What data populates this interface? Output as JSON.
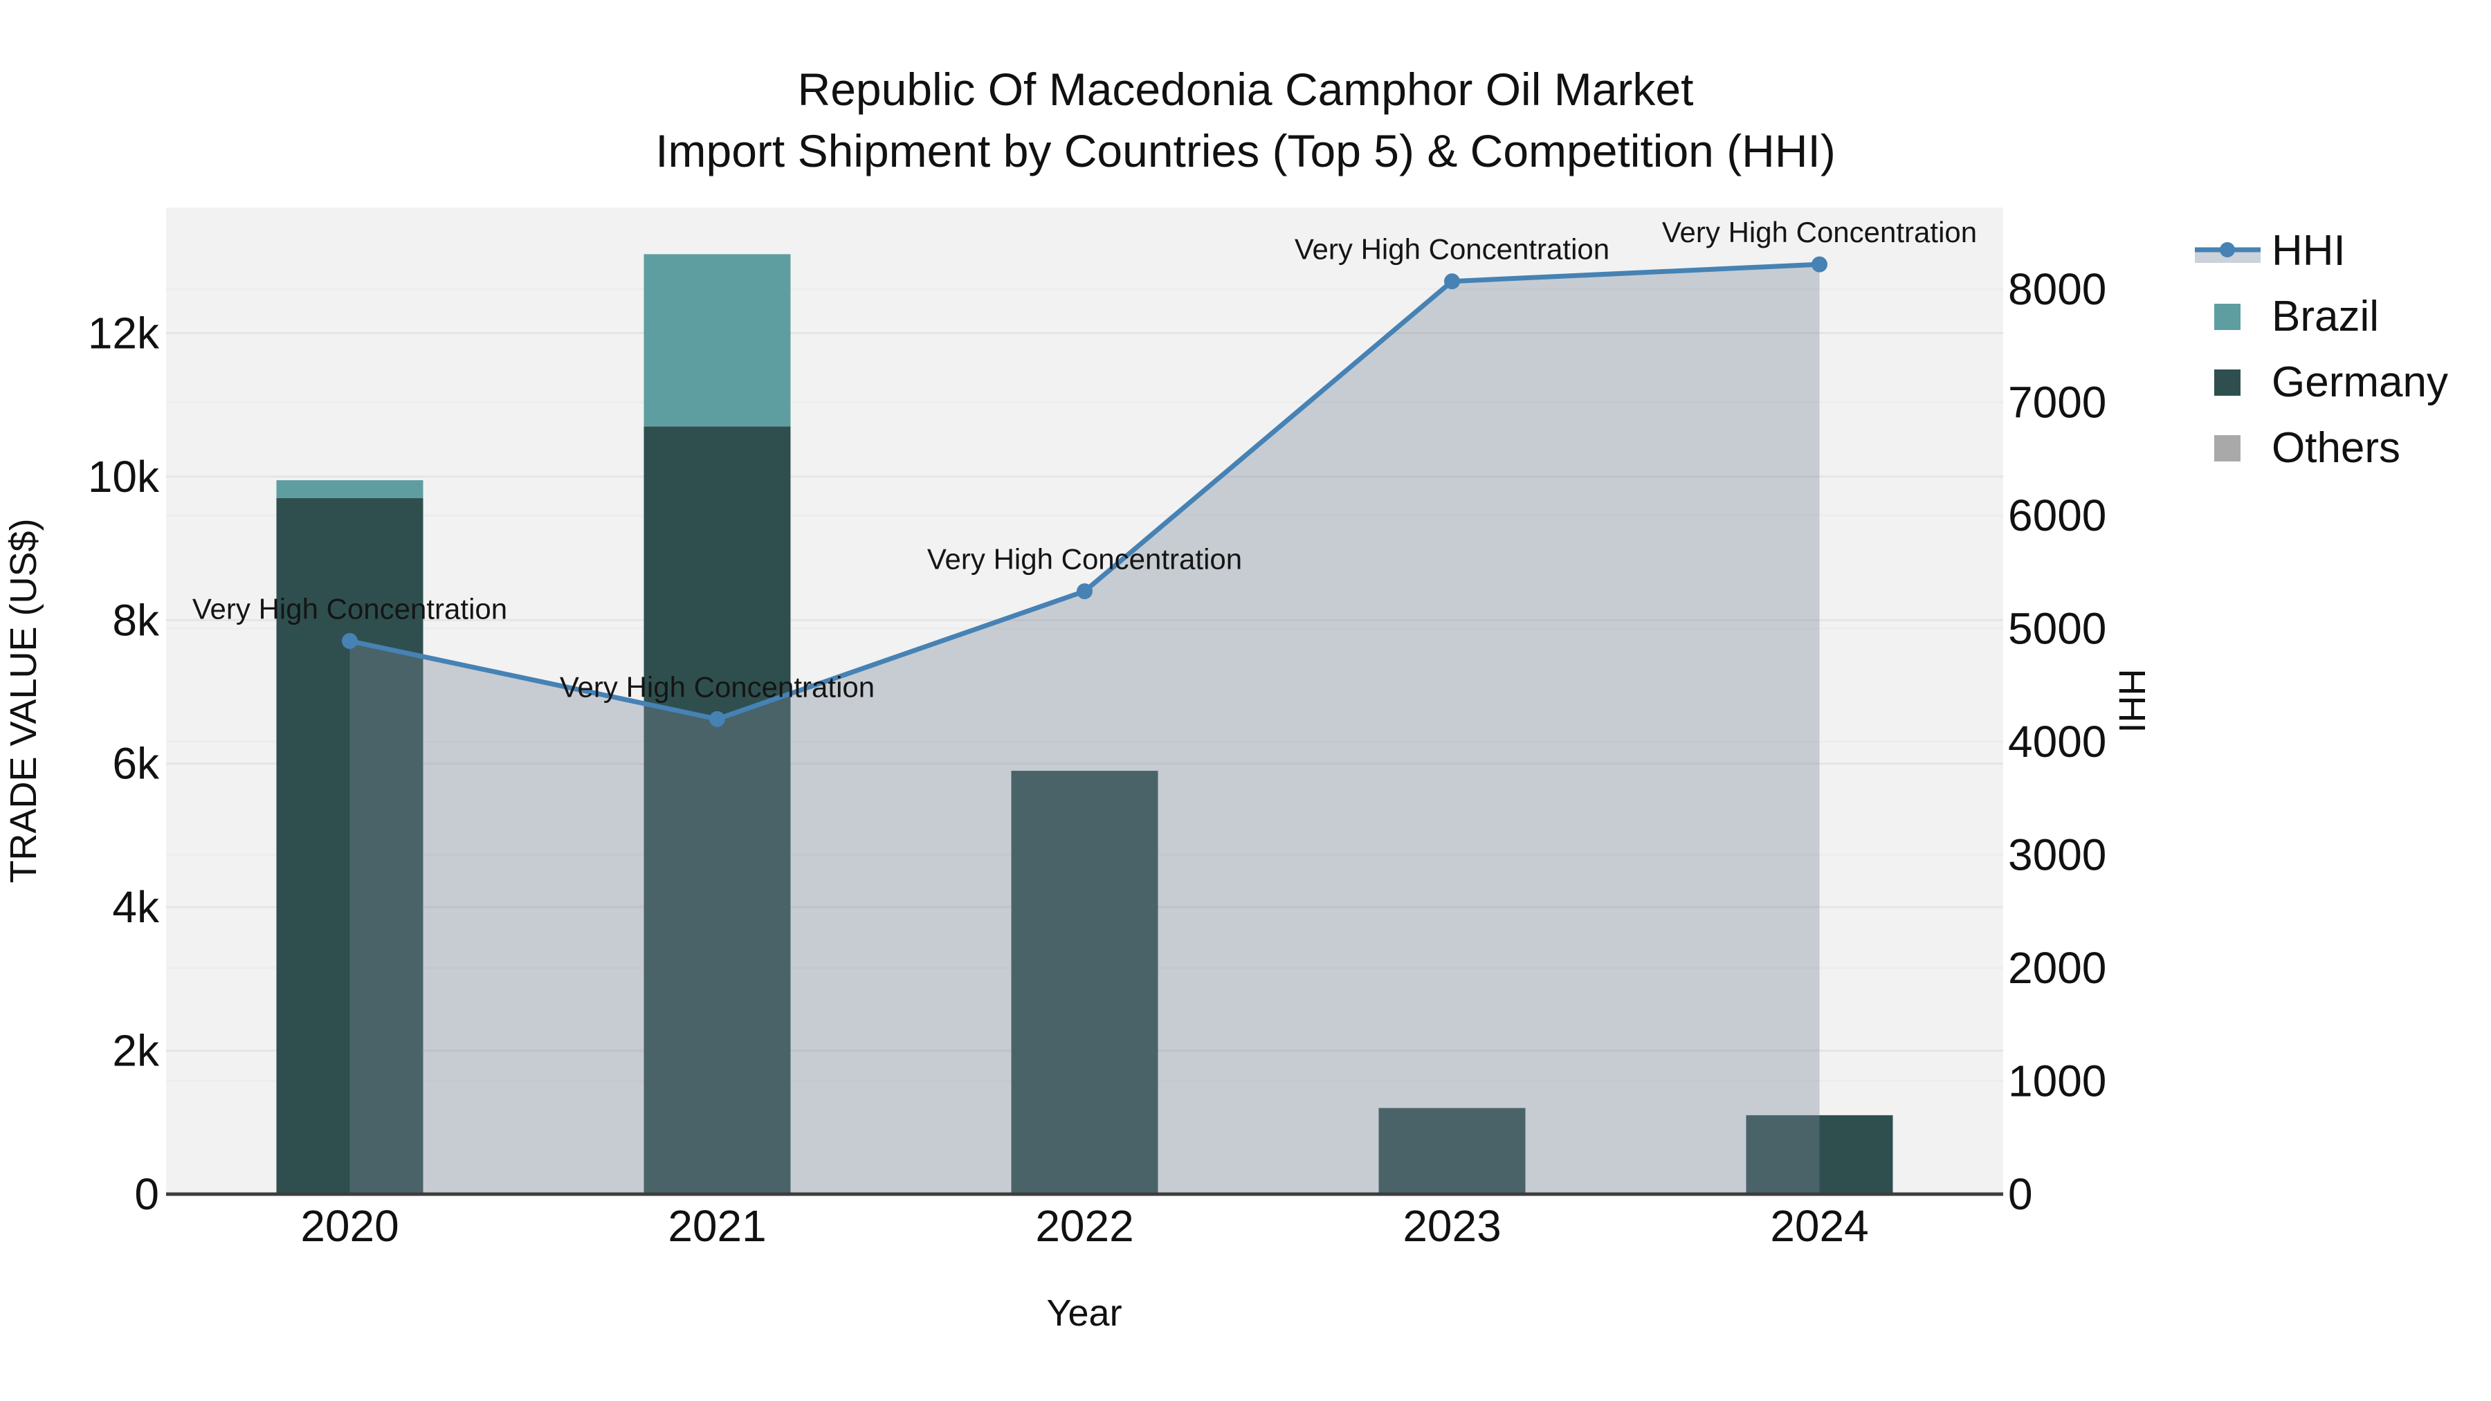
{
  "title": {
    "line1": "Republic Of Macedonia Camphor Oil Market",
    "line2": "Import Shipment by Countries (Top 5) & Competition (HHI)"
  },
  "axes": {
    "x": {
      "title": "Year",
      "ticks": [
        "2020",
        "2021",
        "2022",
        "2023",
        "2024"
      ]
    },
    "y_left": {
      "title": "TRADE VALUE (US$)",
      "tick_labels": [
        "0",
        "2k",
        "4k",
        "6k",
        "8k",
        "10k",
        "12k"
      ],
      "tick_values": [
        0,
        2000,
        4000,
        6000,
        8000,
        10000,
        12000
      ],
      "range": [
        0,
        13750
      ]
    },
    "y_right": {
      "title": "HHI",
      "tick_labels": [
        "0",
        "1000",
        "2000",
        "3000",
        "4000",
        "5000",
        "6000",
        "7000",
        "8000"
      ],
      "tick_values": [
        0,
        1000,
        2000,
        3000,
        4000,
        5000,
        6000,
        7000,
        8000
      ],
      "range": [
        0,
        8722
      ]
    }
  },
  "legend": {
    "items": [
      {
        "label": "HHI",
        "type": "line-area"
      },
      {
        "label": "Brazil",
        "type": "swatch",
        "color": "#5f9ea0"
      },
      {
        "label": "Germany",
        "type": "swatch",
        "color": "#2f4f4f"
      },
      {
        "label": "Others",
        "type": "swatch",
        "color": "#a9a9a9"
      }
    ]
  },
  "colors": {
    "hhi_line": "#4682b4",
    "hhi_fill": "rgba(119,136,153,0.36)",
    "hhi_sample_fill": "#ccd2da",
    "brazil": "#5f9ea0",
    "germany": "#2f4f4f",
    "others": "#a9a9a9",
    "plot_bg": "#f2f2f2",
    "grid_major": "#e5e5e5",
    "grid_minor": "#ececec",
    "axis_line": "#3d3d3d",
    "annotation_text": "#151515",
    "tick_text": "#111111"
  },
  "chart_data": {
    "type": "combo: stacked-bar + line-area (dual axis)",
    "title": "Republic Of Macedonia Camphor Oil Market — Import Shipment by Countries (Top 5) & Competition (HHI)",
    "categories": [
      "2020",
      "2021",
      "2022",
      "2023",
      "2024"
    ],
    "bar_stack_order": [
      "Germany",
      "Brazil",
      "Others"
    ],
    "series": [
      {
        "name": "Germany",
        "type": "bar",
        "yaxis": "left",
        "values": [
          9700,
          10700,
          5900,
          1200,
          1100
        ]
      },
      {
        "name": "Brazil",
        "type": "bar",
        "yaxis": "left",
        "values": [
          250,
          2400,
          0,
          0,
          0
        ]
      },
      {
        "name": "Others",
        "type": "bar",
        "yaxis": "left",
        "values": [
          0,
          0,
          0,
          0,
          0
        ]
      },
      {
        "name": "HHI",
        "type": "line",
        "yaxis": "right",
        "values": [
          4890,
          4200,
          5330,
          8070,
          8220
        ]
      }
    ],
    "annotations": [
      "Very High Concentration",
      "Very High Concentration",
      "Very High Concentration",
      "Very High Concentration",
      "Very High Concentration"
    ],
    "xlabel": "Year",
    "ylabel_left": "TRADE VALUE (US$)",
    "ylabel_right": "HHI",
    "y_left_range": [
      0,
      13750
    ],
    "y_right_range": [
      0,
      8722
    ],
    "grid": true,
    "legend_position": "right"
  }
}
